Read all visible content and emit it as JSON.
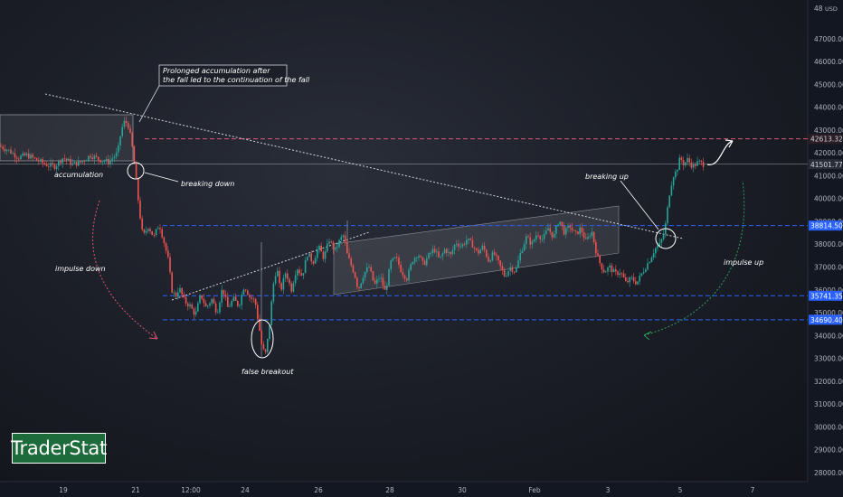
{
  "chart_data": {
    "type": "candlestick",
    "currency": "USD",
    "y_axis_ticks": [
      28000,
      29000,
      30000,
      31000,
      32000,
      33000,
      34000,
      35000,
      36000,
      37000,
      38000,
      39000,
      40000,
      41000,
      42000,
      43000,
      44000,
      45000,
      46000,
      47000
    ],
    "y_axis_tick_labels": [
      "28000.00",
      "29000.00",
      "30000.00",
      "31000.00",
      "32000.00",
      "33000.00",
      "34000.00",
      "35000.00",
      "36000.00",
      "37000.00",
      "38000.00",
      "39000.00",
      "40000.00",
      "41000.00",
      "42000.00",
      "43000.00",
      "44000.00",
      "45000.00",
      "46000.00",
      "47000.00"
    ],
    "y_top_label": "48",
    "ylim": [
      27600,
      48300
    ],
    "x_axis_labels": [
      "19",
      "21",
      "12:00",
      "24",
      "26",
      "28",
      "30",
      "Feb",
      "3",
      "5",
      "7"
    ],
    "price_levels": [
      {
        "label": "42613.32",
        "value": 42613.32,
        "style": "dashed",
        "color": "#e0566f"
      },
      {
        "label": "41501.77",
        "value": 41501.77,
        "style": "solid",
        "color": "#9aa0ab"
      },
      {
        "label": "38814.50",
        "value": 38814.5,
        "style": "dashed",
        "color": "#2962ff"
      },
      {
        "label": "35741.35",
        "value": 35741.35,
        "style": "dashed",
        "color": "#2962ff"
      },
      {
        "label": "34690.40",
        "value": 34690.4,
        "style": "dashed",
        "color": "#2962ff"
      }
    ],
    "price_path": [
      [
        0,
        42300
      ],
      [
        10,
        42100
      ],
      [
        20,
        41800
      ],
      [
        30,
        41900
      ],
      [
        40,
        41700
      ],
      [
        50,
        41500
      ],
      [
        60,
        41400
      ],
      [
        70,
        41800
      ],
      [
        80,
        41500
      ],
      [
        90,
        41600
      ],
      [
        100,
        41900
      ],
      [
        110,
        41700
      ],
      [
        120,
        41600
      ],
      [
        130,
        42000
      ],
      [
        134,
        43000
      ],
      [
        138,
        43400
      ],
      [
        142,
        43200
      ],
      [
        146,
        42300
      ],
      [
        150,
        41000
      ],
      [
        154,
        39500
      ],
      [
        158,
        38300
      ],
      [
        164,
        38800
      ],
      [
        170,
        38300
      ],
      [
        176,
        38900
      ],
      [
        182,
        38000
      ],
      [
        186,
        37300
      ],
      [
        190,
        36000
      ],
      [
        194,
        35700
      ],
      [
        198,
        36100
      ],
      [
        204,
        35500
      ],
      [
        210,
        35300
      ],
      [
        216,
        34900
      ],
      [
        222,
        35800
      ],
      [
        228,
        35200
      ],
      [
        234,
        35600
      ],
      [
        240,
        35000
      ],
      [
        246,
        36100
      ],
      [
        252,
        35200
      ],
      [
        258,
        35600
      ],
      [
        264,
        35300
      ],
      [
        270,
        36200
      ],
      [
        276,
        35700
      ],
      [
        282,
        35500
      ],
      [
        286,
        34500
      ],
      [
        290,
        33400
      ],
      [
        294,
        33200
      ],
      [
        298,
        34500
      ],
      [
        302,
        36200
      ],
      [
        306,
        37000
      ],
      [
        310,
        35900
      ],
      [
        316,
        36800
      ],
      [
        322,
        36000
      ],
      [
        328,
        37000
      ],
      [
        334,
        36600
      ],
      [
        340,
        37600
      ],
      [
        346,
        37200
      ],
      [
        352,
        37900
      ],
      [
        358,
        37400
      ],
      [
        364,
        38200
      ],
      [
        370,
        37700
      ],
      [
        376,
        38200
      ],
      [
        380,
        38400
      ],
      [
        384,
        37500
      ],
      [
        388,
        37100
      ],
      [
        392,
        36700
      ],
      [
        396,
        36000
      ],
      [
        402,
        36700
      ],
      [
        408,
        37000
      ],
      [
        414,
        36200
      ],
      [
        420,
        36600
      ],
      [
        426,
        35900
      ],
      [
        432,
        37200
      ],
      [
        438,
        37400
      ],
      [
        444,
        36800
      ],
      [
        450,
        36500
      ],
      [
        456,
        37300
      ],
      [
        462,
        37600
      ],
      [
        468,
        37100
      ],
      [
        474,
        37500
      ],
      [
        480,
        37800
      ],
      [
        486,
        37300
      ],
      [
        492,
        37800
      ],
      [
        498,
        37500
      ],
      [
        504,
        38100
      ],
      [
        510,
        37900
      ],
      [
        516,
        38200
      ],
      [
        522,
        38000
      ],
      [
        528,
        37600
      ],
      [
        534,
        37900
      ],
      [
        540,
        37300
      ],
      [
        546,
        37600
      ],
      [
        552,
        37100
      ],
      [
        558,
        36600
      ],
      [
        564,
        37000
      ],
      [
        570,
        36800
      ],
      [
        576,
        37700
      ],
      [
        582,
        38300
      ],
      [
        588,
        38000
      ],
      [
        594,
        38500
      ],
      [
        600,
        38200
      ],
      [
        606,
        38700
      ],
      [
        612,
        38300
      ],
      [
        618,
        39100
      ],
      [
        624,
        38500
      ],
      [
        630,
        38800
      ],
      [
        636,
        38400
      ],
      [
        642,
        38700
      ],
      [
        648,
        38100
      ],
      [
        654,
        38600
      ],
      [
        660,
        37500
      ],
      [
        664,
        37100
      ],
      [
        668,
        36800
      ],
      [
        674,
        37000
      ],
      [
        680,
        36700
      ],
      [
        686,
        36800
      ],
      [
        692,
        36300
      ],
      [
        698,
        36500
      ],
      [
        704,
        36300
      ],
      [
        708,
        36600
      ],
      [
        712,
        36900
      ],
      [
        718,
        37300
      ],
      [
        724,
        37800
      ],
      [
        730,
        38000
      ],
      [
        734,
        38500
      ],
      [
        736,
        38900
      ],
      [
        740,
        40200
      ],
      [
        744,
        41000
      ],
      [
        748,
        41200
      ],
      [
        752,
        41800
      ],
      [
        756,
        41500
      ],
      [
        760,
        41700
      ],
      [
        766,
        41400
      ],
      [
        772,
        41600
      ],
      [
        778,
        41500
      ]
    ]
  },
  "annotations": {
    "note1_line1": "Prolonged accumulation after",
    "note1_line2": "the fall led to the continuation of the fall",
    "accumulation": "accumulation",
    "breaking_down": "breaking down",
    "impulse_down": "impulse down",
    "false_breakout": "false breakout",
    "breaking_up": "breaking up",
    "impulse_up": "impulse up"
  },
  "logo": {
    "text": "TraderStat"
  },
  "colors": {
    "up": "#26a69a",
    "down": "#ef5350",
    "background": "#131722"
  }
}
